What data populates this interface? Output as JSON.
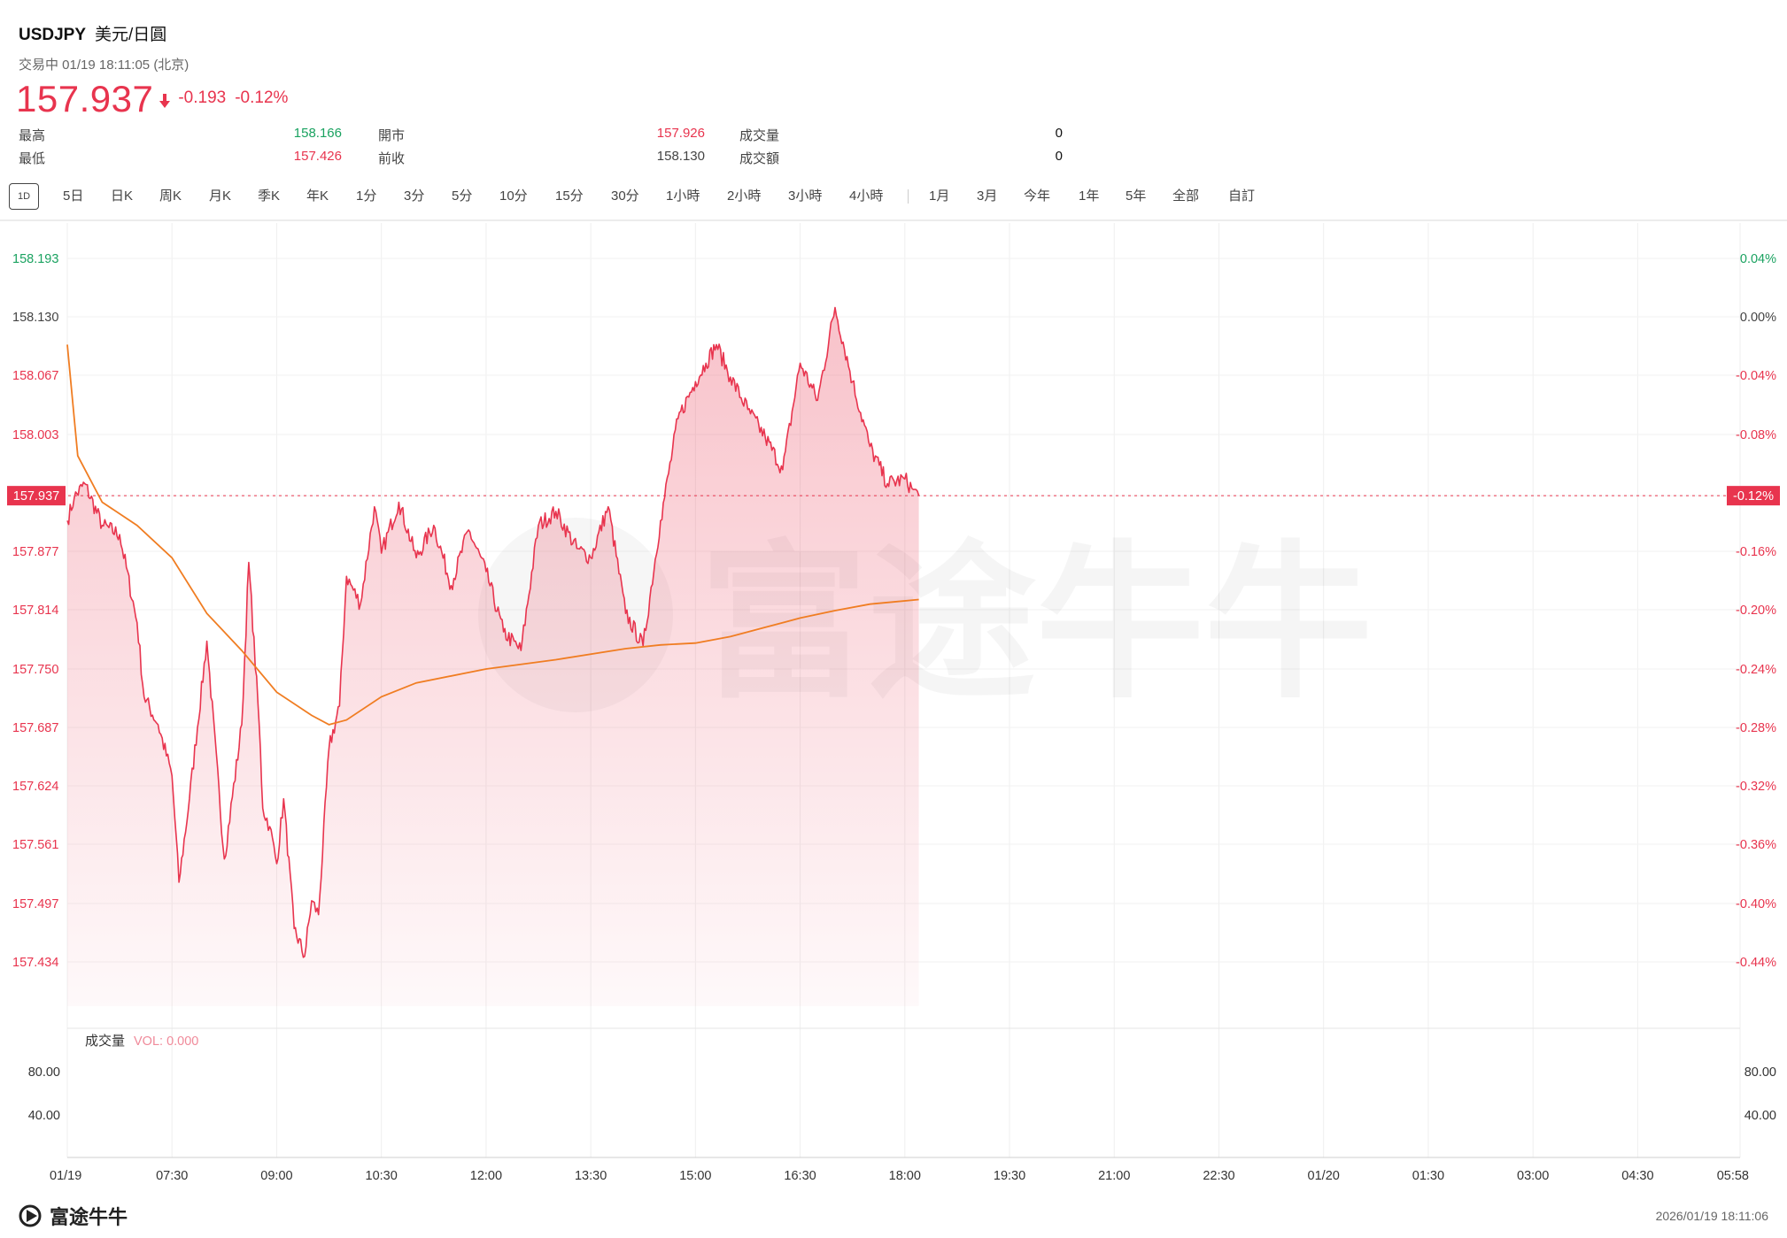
{
  "header": {
    "symbol": "USDJPY",
    "name": "美元/日圓",
    "status": "交易中 01/19 18:11:05 (北京)",
    "price": "157.937",
    "change": "-0.193",
    "change_pct": "-0.12%",
    "stats": [
      {
        "label": "最高",
        "value": "158.166",
        "tone": "up"
      },
      {
        "label": "最低",
        "value": "157.426",
        "tone": "down"
      },
      {
        "label": "開市",
        "value": "157.926",
        "tone": "down"
      },
      {
        "label": "前收",
        "value": "158.130",
        "tone": "neutral"
      },
      {
        "label": "成交量",
        "value": "0",
        "tone": "plain"
      },
      {
        "label": "成交額",
        "value": "0",
        "tone": "plain"
      }
    ]
  },
  "tabs": {
    "active": "1D",
    "items": [
      "5日",
      "日K",
      "周K",
      "月K",
      "季K",
      "年K",
      "1分",
      "3分",
      "5分",
      "10分",
      "15分",
      "30分",
      "1小時",
      "2小時",
      "3小時",
      "4小時",
      "1月",
      "3月",
      "今年",
      "1年",
      "5年",
      "全部",
      "自訂"
    ]
  },
  "chart_data": {
    "type": "line",
    "title": "",
    "xlabel": "",
    "ylabel": "",
    "prev_close": 158.13,
    "last_price": 157.937,
    "last_pct_label": "-0.12%",
    "ylim": [
      157.385,
      158.215
    ],
    "y_ticks": [
      "158.193",
      "158.130",
      "158.067",
      "158.003",
      "157.877",
      "157.814",
      "157.750",
      "157.687",
      "157.624",
      "157.561",
      "157.497",
      "157.434"
    ],
    "pct_ticks": [
      "0.04%",
      "0.00%",
      "-0.04%",
      "-0.08%",
      "-0.16%",
      "-0.20%",
      "-0.24%",
      "-0.28%",
      "-0.32%",
      "-0.36%",
      "-0.40%",
      "-0.44%"
    ],
    "x_ticks": [
      "01/19",
      "07:30",
      "09:00",
      "10:30",
      "12:00",
      "13:30",
      "15:00",
      "16:30",
      "18:00",
      "19:30",
      "21:00",
      "22:30",
      "01/20",
      "01:30",
      "03:00",
      "04:30",
      "05:58"
    ],
    "x_range_hours": [
      6.0,
      29.967
    ],
    "grid": true,
    "series": [
      {
        "style": "price-area",
        "color": "#e8344e",
        "x": [
          6.0,
          6.1,
          6.25,
          6.5,
          6.75,
          7.0,
          7.1,
          7.3,
          7.5,
          7.6,
          7.75,
          8.0,
          8.25,
          8.5,
          8.6,
          8.75,
          8.8,
          8.9,
          9.0,
          9.1,
          9.25,
          9.4,
          9.5,
          9.6,
          9.75,
          9.9,
          10.0,
          10.2,
          10.4,
          10.5,
          10.75,
          11.0,
          11.25,
          11.5,
          11.75,
          12.0,
          12.25,
          12.5,
          12.75,
          13.0,
          13.3,
          13.5,
          13.75,
          14.0,
          14.25,
          14.5,
          14.75,
          15.0,
          15.15,
          15.3,
          15.5,
          15.75,
          16.0,
          16.25,
          16.5,
          16.75,
          17.0,
          17.25,
          17.5,
          17.75,
          18.0,
          18.1,
          18.2
        ],
        "y": [
          157.91,
          157.935,
          157.95,
          157.905,
          157.895,
          157.8,
          157.72,
          157.69,
          157.635,
          157.52,
          157.61,
          157.78,
          157.545,
          157.69,
          157.865,
          157.69,
          157.6,
          157.58,
          157.54,
          157.61,
          157.47,
          157.44,
          157.5,
          157.485,
          157.665,
          157.71,
          157.85,
          157.82,
          157.925,
          157.875,
          157.93,
          157.87,
          157.905,
          157.84,
          157.9,
          157.855,
          157.79,
          157.77,
          157.905,
          157.92,
          157.88,
          157.87,
          157.925,
          157.81,
          157.775,
          157.91,
          158.02,
          158.06,
          158.08,
          158.1,
          158.065,
          158.03,
          158.0,
          157.965,
          158.08,
          158.04,
          158.14,
          158.06,
          157.99,
          157.95,
          157.955,
          157.945,
          157.937
        ]
      },
      {
        "style": "average-line",
        "color": "#f07d22",
        "x": [
          6.0,
          6.15,
          6.5,
          7.0,
          7.5,
          8.0,
          8.5,
          9.0,
          9.5,
          9.75,
          10.0,
          10.5,
          11.0,
          12.0,
          13.0,
          14.0,
          14.5,
          15.0,
          15.5,
          16.0,
          16.5,
          17.0,
          17.5,
          18.2
        ],
        "y": [
          158.1,
          157.98,
          157.93,
          157.905,
          157.87,
          157.81,
          157.77,
          157.725,
          157.7,
          157.69,
          157.695,
          157.72,
          157.735,
          157.75,
          157.76,
          157.772,
          157.776,
          157.778,
          157.785,
          157.795,
          157.805,
          157.813,
          157.82,
          157.825
        ]
      }
    ],
    "volume": {
      "label": "成交量",
      "vol_label": "VOL: 0.000",
      "ticks": [
        "80.00",
        "40.00"
      ]
    }
  },
  "footer": {
    "brand": "富途牛牛",
    "timestamp": "2026/01/19 18:11:06"
  },
  "watermark": "富途牛牛",
  "colors": {
    "up": "#1aa260",
    "down": "#e8344e",
    "avg": "#f07d22",
    "grid": "#efefef"
  }
}
